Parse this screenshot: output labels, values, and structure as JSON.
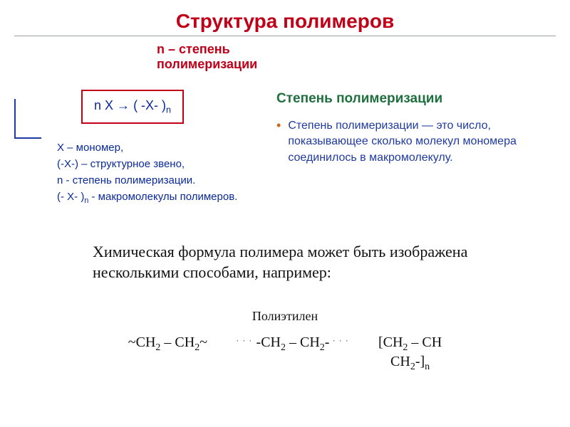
{
  "colors": {
    "title": "#c00018",
    "subhead": "#c00018",
    "formula_blue": "#0a2a9c",
    "eq_border": "#c00018",
    "right_title": "#1f6f3f",
    "right_text": "#1f3aa0",
    "bullet_dot": "#c76a1a",
    "hint_border": "#1f3aa0"
  },
  "title": "Структура полимеров",
  "subhead_lines": [
    "n – степень",
    "полимеризации"
  ],
  "eq_left": "n X",
  "eq_arrow": "→",
  "eq_right_open": "( -X- )",
  "eq_right_sub": "n",
  "defs": {
    "l1": "X – мономер,",
    "l2": "(-X-) – структурное звено,",
    "l3a": "n  -  ",
    "l3b": "степень полимеризации.",
    "l4a": "(- X- )",
    "l4b": "n",
    "l4c": " - макромолекулы полимеров."
  },
  "right": {
    "title": "Степень полимеризации",
    "text": "Степень полимеризации — это число, показывающее сколько молекул мономера соединилось в макромолекулу."
  },
  "body": "Химическая формула полимера может быть изображена несколькими способами, например:",
  "poly_label": "Полиэтилен",
  "formulas": {
    "f1": "~CH",
    "sub2": "2",
    "dash": " – CH",
    "tilde_end": "~",
    "dots": ". . .",
    "mid_open": " -CH",
    "mid_dash": " – CH",
    "mid_close": "- ",
    "br_open": "[CH",
    "br_dash": " – CH",
    "br_close": "-]",
    "sub_n": "n"
  }
}
